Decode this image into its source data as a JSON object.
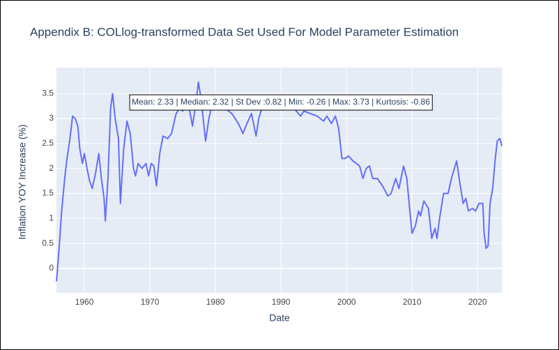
{
  "chart_data": {
    "type": "line",
    "title": "Appendix B: COLlog-transformed Data Set Used For Model Parameter Estimation",
    "x_label": "Date",
    "y_label": "Inflation YOY Increase (%)",
    "annotation": "Mean: 2.33 | Median: 2.32 | St Dev :0.82 | Min: -0.26 | Max: 3.73 | Kurtosis: -0.86",
    "xlim": [
      1955.74,
      2023.7
    ],
    "ylim": [
      -0.49,
      4.02
    ],
    "xticks": [
      1960,
      1970,
      1980,
      1990,
      2000,
      2010,
      2020
    ],
    "yticks": [
      0,
      0.5,
      1,
      1.5,
      2,
      2.5,
      3,
      3.5
    ],
    "grid": true,
    "x": [
      1955.75,
      1956.2,
      1956.5,
      1957.0,
      1957.3,
      1957.8,
      1958.2,
      1958.6,
      1959.0,
      1959.3,
      1959.7,
      1960.0,
      1960.4,
      1960.8,
      1961.2,
      1961.7,
      1962.2,
      1962.6,
      1963.0,
      1963.2,
      1963.6,
      1964.0,
      1964.3,
      1964.7,
      1965.2,
      1965.5,
      1966.0,
      1966.5,
      1967.0,
      1967.5,
      1967.8,
      1968.2,
      1968.8,
      1969.4,
      1969.8,
      1970.2,
      1970.6,
      1971.0,
      1971.5,
      1972.0,
      1972.7,
      1973.3,
      1974.0,
      1974.5,
      1975.0,
      1975.5,
      1976.0,
      1976.5,
      1977.0,
      1977.4,
      1977.8,
      1978.5,
      1979.0,
      1979.5,
      1980.5,
      1981.5,
      1982.5,
      1983.5,
      1984.2,
      1984.8,
      1985.5,
      1986.2,
      1986.6,
      1987.3,
      1988.0,
      1989.0,
      1990.0,
      1991.0,
      1992.0,
      1993.0,
      1993.5,
      1994.5,
      1995.5,
      1996.5,
      1997.0,
      1997.7,
      1998.3,
      1998.8,
      1999.3,
      1999.8,
      2000.3,
      2001.0,
      2002.0,
      2002.5,
      2003.0,
      2003.5,
      2004.0,
      2004.7,
      2005.5,
      2006.3,
      2006.8,
      2007.5,
      2008.0,
      2008.7,
      2009.2,
      2009.7,
      2010.0,
      2010.5,
      2011.0,
      2011.3,
      2011.8,
      2012.5,
      2013.0,
      2013.5,
      2013.8,
      2014.2,
      2014.8,
      2015.5,
      2016.0,
      2016.8,
      2017.3,
      2017.8,
      2018.2,
      2018.6,
      2019.2,
      2019.7,
      2020.2,
      2020.8,
      2021.0,
      2021.3,
      2021.6,
      2021.9,
      2022.3,
      2022.7,
      2023.0,
      2023.4,
      2023.7
    ],
    "series": [
      {
        "name": "Inflation",
        "color": "#636efa",
        "values": [
          -0.26,
          0.5,
          1.1,
          1.8,
          2.15,
          2.6,
          3.05,
          3.0,
          2.85,
          2.4,
          2.1,
          2.3,
          2.0,
          1.75,
          1.6,
          1.9,
          2.3,
          1.8,
          1.4,
          0.95,
          1.8,
          3.2,
          3.5,
          3.0,
          2.6,
          1.3,
          2.4,
          2.95,
          2.7,
          2.0,
          1.85,
          2.1,
          2.0,
          2.1,
          1.85,
          2.1,
          2.05,
          1.65,
          2.3,
          2.65,
          2.6,
          2.7,
          3.1,
          3.2,
          3.15,
          3.3,
          3.2,
          2.85,
          3.3,
          3.73,
          3.4,
          2.55,
          3.0,
          3.3,
          3.3,
          3.2,
          3.1,
          2.9,
          2.7,
          2.9,
          3.1,
          2.65,
          3.0,
          3.3,
          3.25,
          3.2,
          3.2,
          3.25,
          3.2,
          3.05,
          3.15,
          3.1,
          3.05,
          2.95,
          3.05,
          2.9,
          3.05,
          2.8,
          2.2,
          2.2,
          2.25,
          2.15,
          2.05,
          1.8,
          2.0,
          2.05,
          1.8,
          1.8,
          1.65,
          1.45,
          1.5,
          1.8,
          1.6,
          2.05,
          1.8,
          1.1,
          0.7,
          0.85,
          1.15,
          1.05,
          1.35,
          1.2,
          0.6,
          0.8,
          0.6,
          1.0,
          1.5,
          1.5,
          1.8,
          2.15,
          1.7,
          1.3,
          1.4,
          1.15,
          1.2,
          1.15,
          1.3,
          1.3,
          0.7,
          0.4,
          0.45,
          1.3,
          1.6,
          2.2,
          2.55,
          2.6,
          2.45
        ]
      }
    ]
  }
}
